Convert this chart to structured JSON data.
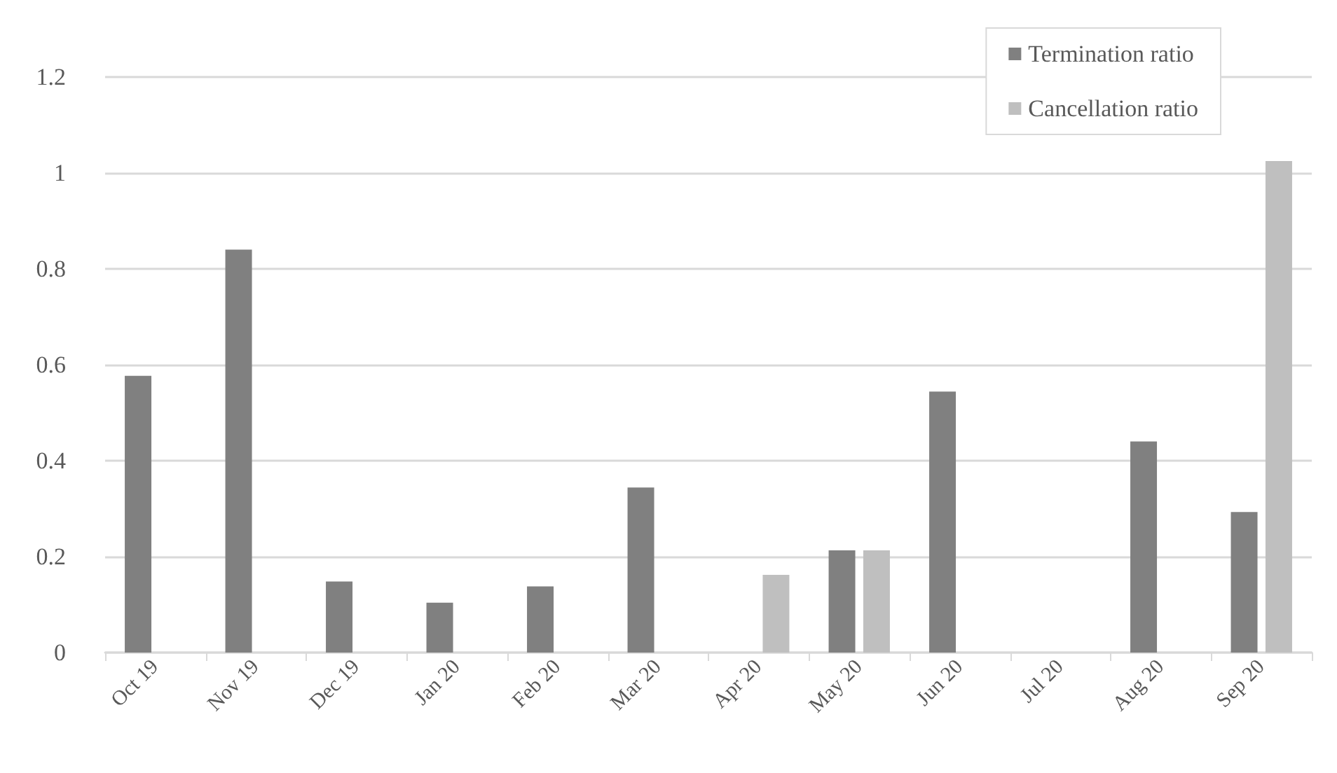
{
  "chart_data": {
    "type": "bar",
    "categories": [
      "Oct 19",
      "Nov 19",
      "Dec 19",
      "Jan 20",
      "Feb 20",
      "Mar 20",
      "Apr 20",
      "May 20",
      "Jun 20",
      "Jul 20",
      "Aug 20",
      "Sep 20"
    ],
    "series": [
      {
        "name": "Termination ratio",
        "color": "#808080",
        "values": [
          0.577,
          0.84,
          0.148,
          0.104,
          0.138,
          0.344,
          null,
          0.213,
          0.544,
          null,
          0.44,
          0.293
        ]
      },
      {
        "name": "Cancellation ratio",
        "color": "#bfbfbf",
        "values": [
          null,
          null,
          null,
          null,
          null,
          null,
          0.162,
          0.213,
          null,
          null,
          null,
          1.025
        ]
      }
    ],
    "ylim": [
      0,
      1.2
    ],
    "yticks": [
      0,
      0.2,
      0.4,
      0.6,
      0.8,
      1,
      1.2
    ],
    "grid": "y",
    "legend": "top right"
  }
}
